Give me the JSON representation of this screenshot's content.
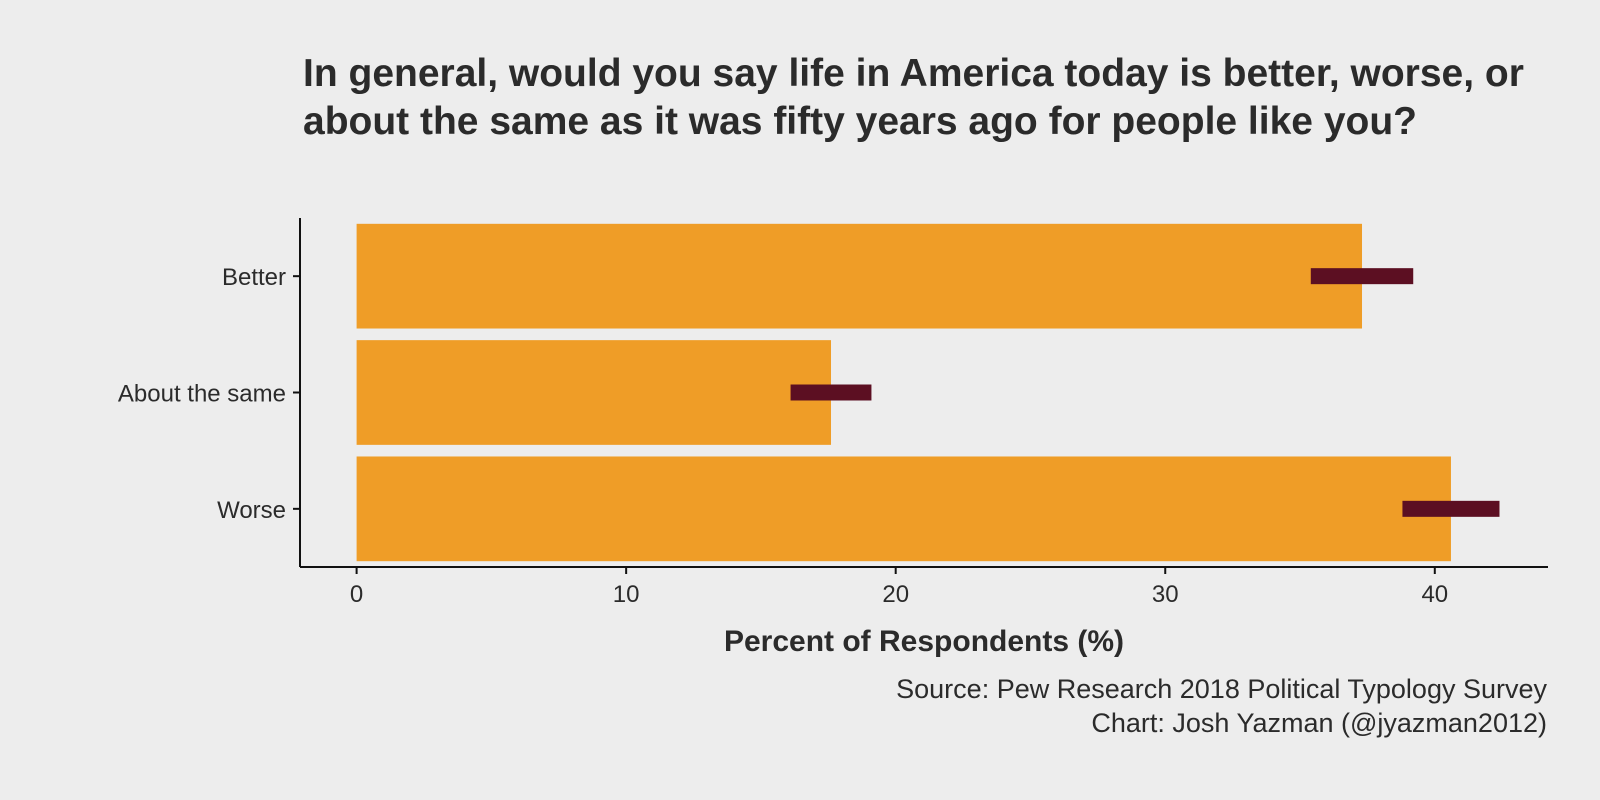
{
  "chart_data": {
    "type": "bar",
    "orientation": "horizontal",
    "title": "In general, would you say life in America today is better, worse, or about the same as it was fifty years ago for people like you?",
    "xlabel": "Percent of Respondents (%)",
    "ylabel": "",
    "categories": [
      "Better",
      "About the same",
      "Worse"
    ],
    "values": [
      37.3,
      17.6,
      40.6
    ],
    "error_intervals": [
      [
        35.4,
        39.2
      ],
      [
        16.1,
        19.1
      ],
      [
        38.8,
        42.4
      ]
    ],
    "xlim": [
      -2.1,
      44.2
    ],
    "xticks": [
      0,
      10,
      20,
      30,
      40
    ],
    "grid": false,
    "legend": "none",
    "caption": [
      "Source: Pew Research 2018 Political Typology Survey",
      "Chart: Josh Yazman (@jyazman2012)"
    ],
    "colors": {
      "bar": "#ef9d27",
      "interval": "#5c0f22",
      "background": "#ededed",
      "text": "#2b2b2b"
    }
  }
}
